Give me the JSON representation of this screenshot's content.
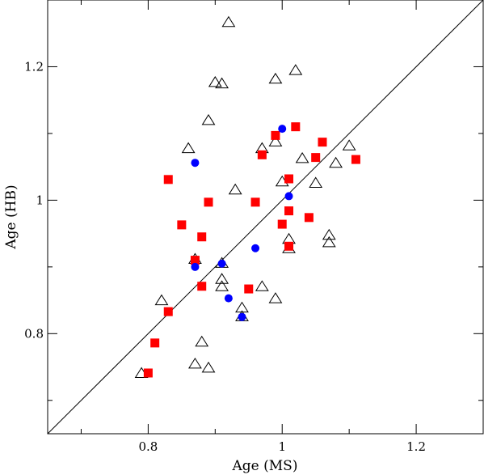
{
  "chart_data": {
    "type": "scatter",
    "xlabel": "Age (MS)",
    "ylabel": "Age (HB)",
    "xlim": [
      0.65,
      1.3
    ],
    "ylim": [
      0.65,
      1.3
    ],
    "x_ticks": [
      0.8,
      1,
      1.2
    ],
    "x_tick_labels": [
      "0.8",
      "1",
      "1.2"
    ],
    "y_ticks": [
      0.8,
      1,
      1.2
    ],
    "y_tick_labels": [
      "0.8",
      "1",
      "1.2"
    ],
    "grid": false,
    "legend": "none",
    "reference_line": {
      "type": "identity",
      "from": [
        0.65,
        0.65
      ],
      "to": [
        1.3,
        1.3
      ]
    },
    "series": [
      {
        "marker": "open-triangle",
        "color": "#000000",
        "points": [
          [
            0.92,
            1.267
          ],
          [
            0.99,
            1.182
          ],
          [
            1.02,
            1.195
          ],
          [
            0.9,
            1.177
          ],
          [
            0.91,
            1.175
          ],
          [
            0.89,
            1.12
          ],
          [
            0.99,
            1.088
          ],
          [
            0.97,
            1.078
          ],
          [
            0.86,
            1.078
          ],
          [
            1.03,
            1.063
          ],
          [
            1.08,
            1.056
          ],
          [
            1.1,
            1.082
          ],
          [
            1.0,
            1.028
          ],
          [
            1.05,
            1.026
          ],
          [
            0.93,
            1.016
          ],
          [
            1.07,
            0.948
          ],
          [
            1.01,
            0.942
          ],
          [
            1.07,
            0.937
          ],
          [
            1.01,
            0.928
          ],
          [
            0.87,
            0.912
          ],
          [
            0.91,
            0.906
          ],
          [
            0.91,
            0.882
          ],
          [
            0.91,
            0.871
          ],
          [
            0.97,
            0.871
          ],
          [
            0.82,
            0.85
          ],
          [
            0.99,
            0.853
          ],
          [
            0.94,
            0.839
          ],
          [
            0.94,
            0.826
          ],
          [
            0.88,
            0.788
          ],
          [
            0.87,
            0.755
          ],
          [
            0.89,
            0.749
          ],
          [
            0.79,
            0.741
          ]
        ]
      },
      {
        "marker": "filled-square",
        "color": "#ff0000",
        "points": [
          [
            1.02,
            1.11
          ],
          [
            0.99,
            1.097
          ],
          [
            1.06,
            1.087
          ],
          [
            0.97,
            1.068
          ],
          [
            1.05,
            1.064
          ],
          [
            1.11,
            1.061
          ],
          [
            0.83,
            1.031
          ],
          [
            1.01,
            1.032
          ],
          [
            0.89,
            0.997
          ],
          [
            0.96,
            0.997
          ],
          [
            1.01,
            0.984
          ],
          [
            1.04,
            0.974
          ],
          [
            1.0,
            0.964
          ],
          [
            0.85,
            0.963
          ],
          [
            0.88,
            0.945
          ],
          [
            1.01,
            0.931
          ],
          [
            0.87,
            0.91
          ],
          [
            0.88,
            0.871
          ],
          [
            0.95,
            0.867
          ],
          [
            0.83,
            0.833
          ],
          [
            0.81,
            0.786
          ],
          [
            0.8,
            0.741
          ]
        ]
      },
      {
        "marker": "filled-circle",
        "color": "#0000ff",
        "points": [
          [
            1.0,
            1.107
          ],
          [
            0.87,
            1.056
          ],
          [
            1.01,
            1.006
          ],
          [
            0.96,
            0.928
          ],
          [
            0.91,
            0.905
          ],
          [
            0.87,
            0.9
          ],
          [
            0.92,
            0.853
          ],
          [
            0.94,
            0.825
          ]
        ]
      }
    ]
  }
}
